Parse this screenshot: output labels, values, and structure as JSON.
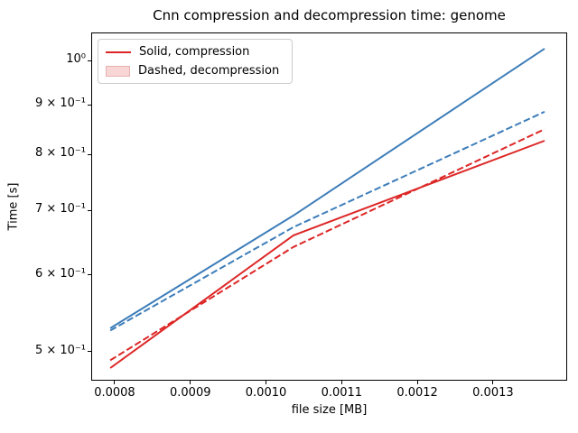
{
  "figure": {
    "title": "Cnn compression and decompression time: genome",
    "xlabel": "file size [MB]",
    "ylabel": "Time [s]"
  },
  "legend": {
    "position": "upper left",
    "items": [
      {
        "label": "Solid, compression",
        "swatch": "line",
        "color": "#dd2626"
      },
      {
        "label": "Dashed, decompression",
        "swatch": "patch",
        "face": "#f9d6d6",
        "edge": "#e8b0b0"
      }
    ]
  },
  "chart_data": {
    "type": "line",
    "title": "Cnn compression and decompression time: genome",
    "xlabel": "file size [MB]",
    "ylabel": "Time [s]",
    "yscale": "log",
    "grid": false,
    "legend_position": "upper left",
    "xlim": [
      0.000769,
      0.001398
    ],
    "ylim": [
      0.4667,
      1.069
    ],
    "xticks": [
      {
        "v": 0.0008,
        "label": "0.0008"
      },
      {
        "v": 0.0009,
        "label": "0.0009"
      },
      {
        "v": 0.001,
        "label": "0.0010"
      },
      {
        "v": 0.0011,
        "label": "0.0011"
      },
      {
        "v": 0.0012,
        "label": "0.0012"
      },
      {
        "v": 0.0013,
        "label": "0.0013"
      }
    ],
    "yticks": [
      {
        "v": 1.0,
        "label": "10⁰"
      },
      {
        "v": 0.9,
        "label": "9 × 10⁻¹"
      },
      {
        "v": 0.8,
        "label": "8 × 10⁻¹"
      },
      {
        "v": 0.7,
        "label": "7 × 10⁻¹"
      },
      {
        "v": 0.6,
        "label": "6 × 10⁻¹"
      },
      {
        "v": 0.5,
        "label": "5 × 10⁻¹"
      }
    ],
    "x": [
      0.000793,
      0.001035,
      0.001367
    ],
    "series": [
      {
        "name": "compression, red (solid)",
        "color": "#dd2626",
        "linestyle": "solid",
        "values": [
          0.482,
          0.661,
          0.828
        ]
      },
      {
        "name": "decompression, red (dashed)",
        "color": "#dd2626",
        "linestyle": "dashed",
        "values": [
          0.491,
          0.643,
          0.851
        ]
      },
      {
        "name": "compression, blue (solid)",
        "color": "#3d7db9",
        "linestyle": "solid",
        "values": [
          0.53,
          0.693,
          1.031
        ]
      },
      {
        "name": "decompression, blue (dashed)",
        "color": "#3d7db9",
        "linestyle": "dashed",
        "values": [
          0.527,
          0.674,
          0.887
        ]
      }
    ]
  }
}
